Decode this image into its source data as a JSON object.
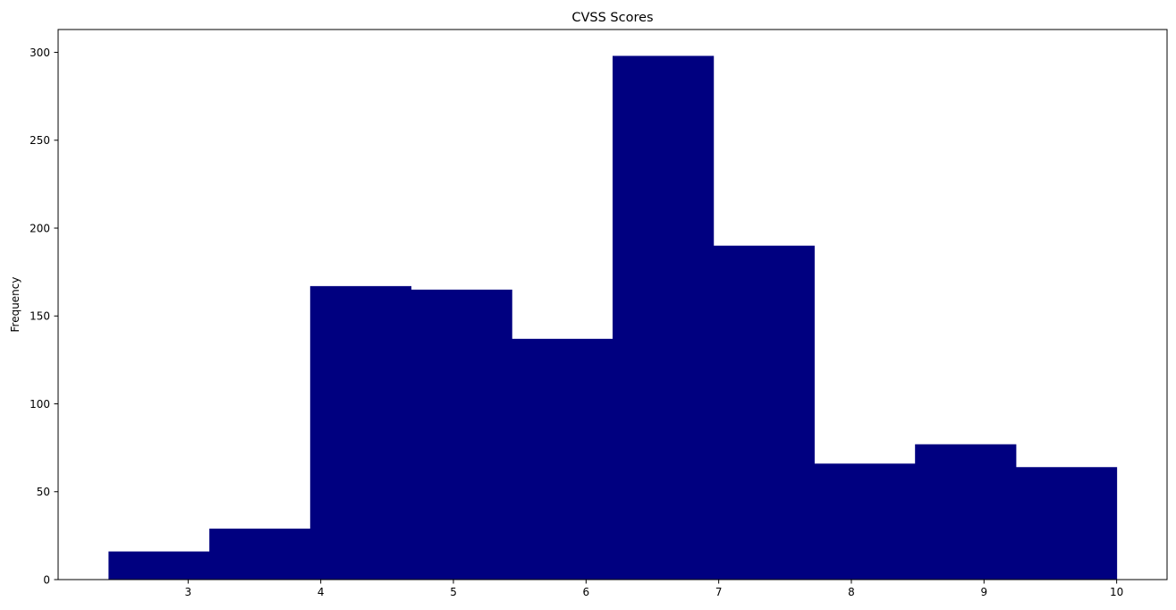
{
  "chart_data": {
    "type": "bar",
    "title": "CVSS Scores",
    "xlabel": "",
    "ylabel": "Frequency",
    "bar_color": "#000080",
    "bin_edges": [
      2.4,
      3.16,
      3.92,
      4.68,
      5.44,
      6.2,
      6.96,
      7.72,
      8.48,
      9.24,
      10.0
    ],
    "values": [
      16,
      29,
      167,
      165,
      137,
      298,
      190,
      66,
      77,
      64
    ],
    "xlim": [
      2.02,
      10.38
    ],
    "ylim": [
      0,
      313
    ],
    "xticks": [
      3,
      4,
      5,
      6,
      7,
      8,
      9,
      10
    ],
    "yticks": [
      0,
      50,
      100,
      150,
      200,
      250,
      300
    ],
    "grid": false,
    "legend": false
  }
}
